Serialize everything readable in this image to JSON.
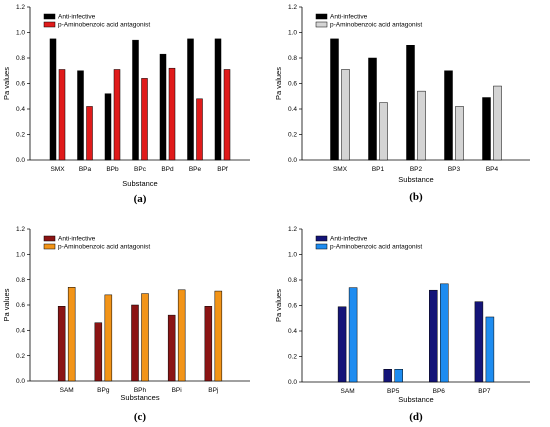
{
  "chart_data": [
    {
      "type": "bar",
      "panel_label": "(a)",
      "categories": [
        "SMX",
        "BPa",
        "BPb",
        "BPc",
        "BPd",
        "BPe",
        "BPf"
      ],
      "series": [
        {
          "name": "Anti-infective",
          "color": "#000000",
          "values": [
            0.95,
            0.7,
            0.52,
            0.94,
            0.83,
            0.95,
            0.95
          ]
        },
        {
          "name": "p-Aminobenzoic acid antagonist",
          "color": "#e01b1b",
          "values": [
            0.71,
            0.42,
            0.71,
            0.64,
            0.72,
            0.48,
            0.71
          ]
        }
      ],
      "xlabel": "Substance",
      "ylabel": "Pa values",
      "ylim": [
        0,
        1.2
      ],
      "yticks": [
        "0.0",
        "0.2",
        "0.4",
        "0.6",
        "0.8",
        "1.0",
        "1.2"
      ],
      "legend_position": "top-left",
      "grid": false
    },
    {
      "type": "bar",
      "panel_label": "(b)",
      "categories": [
        "SMX",
        "BP1",
        "BP2",
        "BP3",
        "BP4"
      ],
      "series": [
        {
          "name": "Anti-infective",
          "color": "#000000",
          "values": [
            0.95,
            0.8,
            0.9,
            0.7,
            0.49
          ]
        },
        {
          "name": "p-Aminobenzoic acid antagonist",
          "color": "#d4d4d4",
          "values": [
            0.71,
            0.45,
            0.54,
            0.42,
            0.58
          ]
        }
      ],
      "xlabel": "Substance",
      "ylabel": "Pa values",
      "ylim": [
        0,
        1.2
      ],
      "yticks": [
        "0.0",
        "0.2",
        "0.4",
        "0.6",
        "0.8",
        "1.0",
        "1.2"
      ],
      "legend_position": "top-left",
      "grid": false
    },
    {
      "type": "bar",
      "panel_label": "(c)",
      "categories": [
        "SAM",
        "BPg",
        "BPh",
        "BPi",
        "BPj"
      ],
      "series": [
        {
          "name": "Anti-infective",
          "color": "#8b1414",
          "values": [
            0.59,
            0.46,
            0.6,
            0.52,
            0.59
          ]
        },
        {
          "name": "p-Aminobenzoic acid antagonist",
          "color": "#f29418",
          "values": [
            0.74,
            0.68,
            0.69,
            0.72,
            0.71
          ]
        }
      ],
      "xlabel": "Substances",
      "ylabel": "Pa values",
      "ylim": [
        0,
        1.2
      ],
      "yticks": [
        "0.0",
        "0.2",
        "0.4",
        "0.6",
        "0.8",
        "1.0",
        "1.2"
      ],
      "legend_position": "top-left",
      "grid": false
    },
    {
      "type": "bar",
      "panel_label": "(d)",
      "categories": [
        "SAM",
        "BP5",
        "BP6",
        "BP7"
      ],
      "series": [
        {
          "name": "Anti-infective",
          "color": "#141478",
          "values": [
            0.59,
            0.1,
            0.72,
            0.63
          ]
        },
        {
          "name": "p-Aminobenzoic acid antagonist",
          "color": "#1e8cf0",
          "values": [
            0.74,
            0.1,
            0.77,
            0.51
          ]
        }
      ],
      "xlabel": "Substance",
      "ylabel": "Pa values",
      "ylim": [
        0,
        1.2
      ],
      "yticks": [
        "0.0",
        "0.2",
        "0.4",
        "0.6",
        "0.8",
        "1.0",
        "1.2"
      ],
      "legend_position": "top-left",
      "grid": false
    }
  ]
}
